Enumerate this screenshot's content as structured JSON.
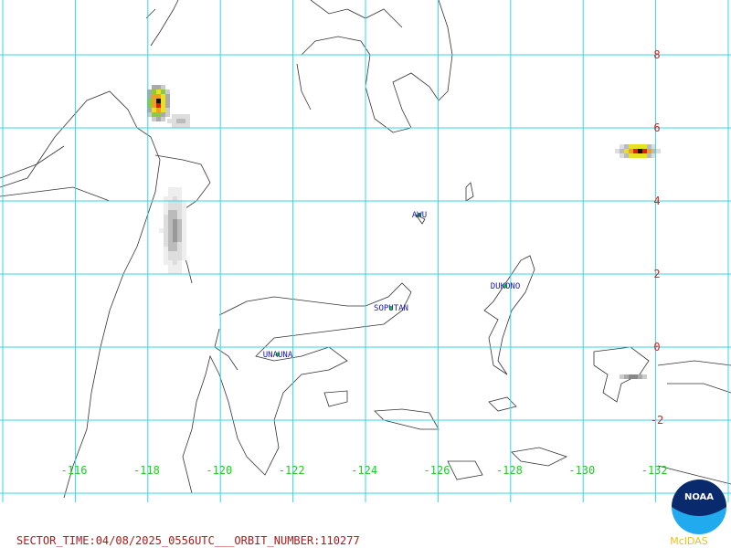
{
  "longitude_labels": [
    "-116",
    "-118",
    "-120",
    "-122",
    "-124",
    "-126",
    "-128",
    "-130",
    "-132"
  ],
  "latitude_labels": [
    "8",
    "6",
    "4",
    "2",
    "0",
    "-2"
  ],
  "volcanoes": [
    {
      "name": "AWU"
    },
    {
      "name": "DUKONO"
    },
    {
      "name": "SOPUTAN"
    },
    {
      "name": "UNAUNA"
    }
  ],
  "footer": "SECTOR_TIME:04/08/2025_0556UTC___ORBIT_NUMBER:110277",
  "logo": {
    "text": "NOAA",
    "caption": "McIDAS"
  }
}
